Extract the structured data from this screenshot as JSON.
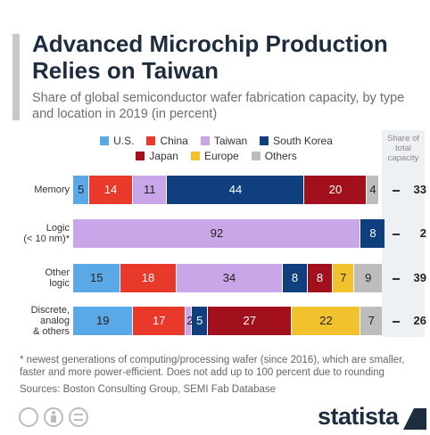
{
  "chart_data": {
    "type": "stacked-bar-horizontal",
    "title": "Advanced Microchip Production Relies on Taiwan",
    "subtitle": "Share of global semiconductor wafer fabrication capacity, by type and location in 2019 (in percent)",
    "categories": [
      "Memory",
      "Logic\n(< 10 nm)*",
      "Other\nlogic",
      "Discrete,\nanalog\n& others"
    ],
    "series": [
      {
        "name": "U.S.",
        "color": "#5aa9e6",
        "values": [
          5,
          null,
          15,
          19
        ]
      },
      {
        "name": "China",
        "color": "#e8392b",
        "values": [
          14,
          null,
          18,
          17
        ]
      },
      {
        "name": "Taiwan",
        "color": "#c9a6e8",
        "values": [
          11,
          92,
          34,
          2
        ]
      },
      {
        "name": "South Korea",
        "color": "#0f3f7f",
        "values": [
          44,
          8,
          8,
          5
        ]
      },
      {
        "name": "Japan",
        "color": "#a1101c",
        "values": [
          20,
          null,
          8,
          27
        ]
      },
      {
        "name": "Europe",
        "color": "#f2c12e",
        "values": [
          null,
          null,
          7,
          22
        ]
      },
      {
        "name": "Others",
        "color": "#bdbdbd",
        "values": [
          4,
          null,
          9,
          7
        ]
      }
    ],
    "xlim": [
      0,
      100
    ],
    "share_header": "Share of total capacity",
    "share_values": [
      33,
      2,
      39,
      26
    ],
    "footnote": "* newest generations of computing/processing wafer (since 2016), which are smaller, faster and more power-efficient. Does not add up to 100 percent due to rounding",
    "source": "Sources: Boston Consulting Group, SEMI Fab Database",
    "brand": "statista"
  }
}
